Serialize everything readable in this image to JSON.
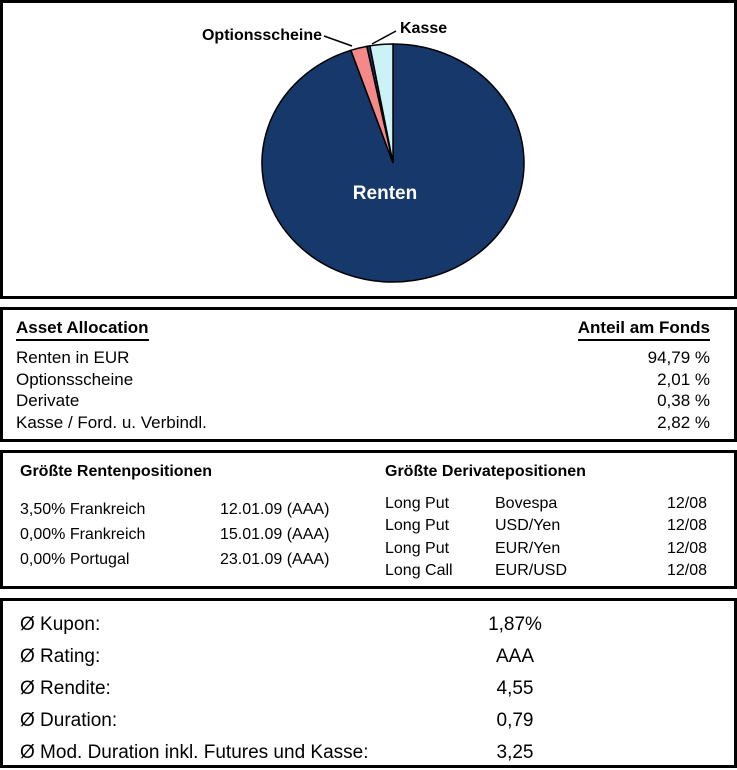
{
  "chart_data": {
    "type": "pie",
    "start_angle_deg": 0,
    "direction": "clockwise",
    "legend_position": "none",
    "slices": [
      {
        "label": "Renten",
        "value": 94.79,
        "color": "#17386B",
        "label_visible": true,
        "label_color": "#FFFFFF"
      },
      {
        "label": "Optionsscheine",
        "value": 2.01,
        "color": "#F58888",
        "label_visible": true,
        "label_color": "#000000"
      },
      {
        "label": "Derivate",
        "value": 0.38,
        "color": "#17386B",
        "label_visible": false,
        "label_color": "#000000"
      },
      {
        "label": "Kasse",
        "value": 2.82,
        "color": "#CBF3F5",
        "label_visible": true,
        "label_color": "#000000"
      }
    ]
  },
  "asset_allocation": {
    "title": "Asset Allocation",
    "value_header": "Anteil am Fonds",
    "rows": [
      {
        "label": "Renten in EUR",
        "value": "94,79 %"
      },
      {
        "label": "Optionsscheine",
        "value": "2,01 %"
      },
      {
        "label": "Derivate",
        "value": "0,38 %"
      },
      {
        "label": "Kasse / Ford. u. Verbindl.",
        "value": "2,82 %"
      }
    ]
  },
  "renten_positions": {
    "title": "Größte Rentenpositionen",
    "rows": [
      {
        "name": "3,50% Frankreich",
        "detail": "12.01.09 (AAA)"
      },
      {
        "name": "0,00% Frankreich",
        "detail": "15.01.09 (AAA)"
      },
      {
        "name": "0,00% Portugal",
        "detail": "23.01.09 (AAA)"
      }
    ]
  },
  "derivate_positions": {
    "title": "Größte Derivatepositionen",
    "rows": [
      {
        "type": "Long Put",
        "underlying": "Bovespa",
        "expiry": "12/08"
      },
      {
        "type": "Long Put",
        "underlying": "USD/Yen",
        "expiry": "12/08"
      },
      {
        "type": "Long Put",
        "underlying": "EUR/Yen",
        "expiry": "12/08"
      },
      {
        "type": "Long Call",
        "underlying": "EUR/USD",
        "expiry": "12/08"
      }
    ]
  },
  "statistics": {
    "rows": [
      {
        "label": "Ø Kupon:",
        "value": "1,87%"
      },
      {
        "label": "Ø Rating:",
        "value": "AAA"
      },
      {
        "label": "Ø Rendite:",
        "value": "4,55"
      },
      {
        "label": "Ø Duration:",
        "value": "0,79"
      },
      {
        "label": "Ø Mod. Duration inkl. Futures und Kasse:",
        "value": "3,25"
      }
    ]
  }
}
